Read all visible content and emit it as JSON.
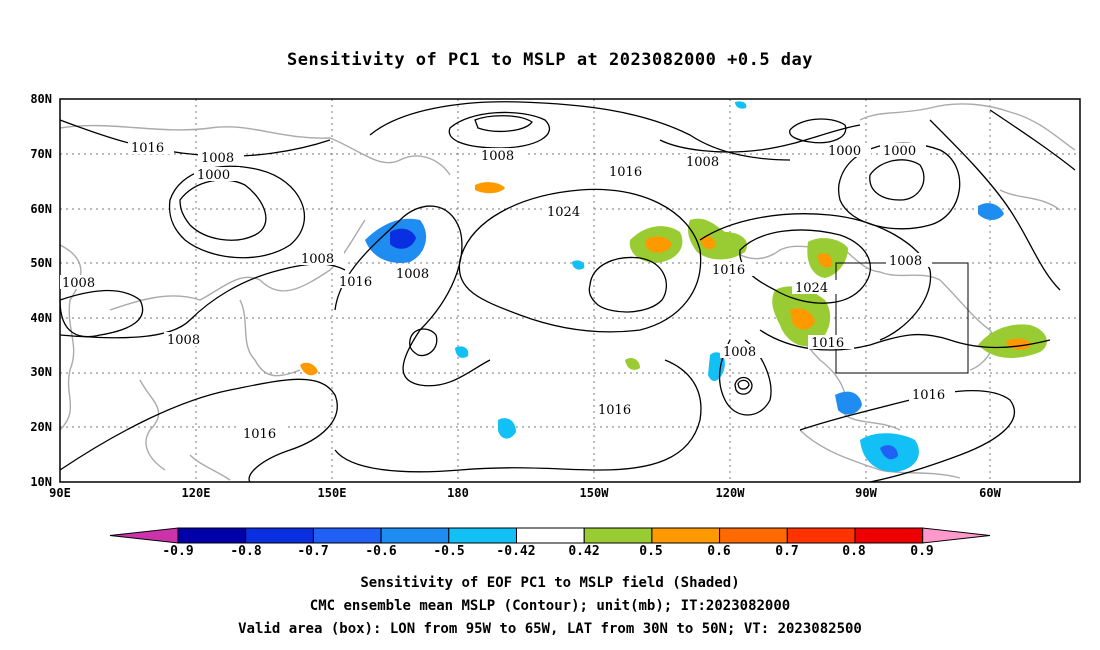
{
  "title": "Sensitivity of PC1 to MSLP at 2023082000 +0.5 day",
  "axes": {
    "lat_labels": [
      "80N",
      "70N",
      "60N",
      "50N",
      "40N",
      "30N",
      "20N",
      "10N"
    ],
    "lon_labels": [
      "90E",
      "120E",
      "150E",
      "180",
      "150W",
      "120W",
      "90W",
      "60W"
    ],
    "lon_range": [
      "90E",
      "40W"
    ],
    "lat_range": [
      "10N",
      "80N"
    ],
    "grid": "dotted"
  },
  "contour_labels": [
    "1016",
    "1008",
    "1000",
    "1008",
    "1016",
    "1024",
    "1008",
    "1016",
    "1000",
    "1000",
    "1008",
    "1008",
    "1016",
    "1008",
    "1008",
    "1016",
    "1024",
    "1016",
    "1008",
    "1016",
    "1008",
    "1016"
  ],
  "colorbar": {
    "labels": [
      "-0.9",
      "-0.8",
      "-0.7",
      "-0.6",
      "-0.5",
      "-0.42",
      "0.42",
      "0.5",
      "0.6",
      "0.7",
      "0.8",
      "0.9"
    ],
    "colors": [
      "#cc33aa",
      "#0000aa",
      "#0a2fe0",
      "#2060f5",
      "#1e8cf0",
      "#12c0f5",
      "#ffffff",
      "#99cc33",
      "#ff9900",
      "#ff6a00",
      "#ff3300",
      "#ee0000",
      "#ff99cc"
    ]
  },
  "valid_box": {
    "lon_from": "95W",
    "lon_to": "65W",
    "lat_from": "30N",
    "lat_to": "50N"
  },
  "footer": {
    "line1": "Sensitivity of EOF PC1 to MSLP field (Shaded)",
    "line2": "CMC ensemble mean MSLP (Contour); unit(mb); IT:2023082000",
    "line3": "Valid area (box): LON from 95W to 65W, LAT from 30N to 50N; VT: 2023082500"
  }
}
